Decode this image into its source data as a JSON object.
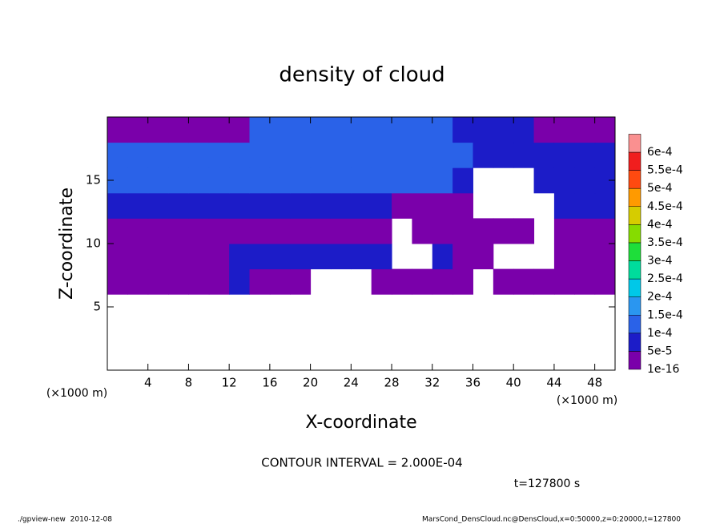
{
  "chart_data": {
    "type": "contour",
    "title": "density of cloud",
    "x_label": "X-coordinate",
    "y_label": "Z-coordinate",
    "x_unit_left": "(×1000 m)",
    "x_unit_right": "(×1000 m)",
    "contour_interval": "CONTOUR INTERVAL = 2.000E-04",
    "time_label": "t=127800 s",
    "footer_left": "./gpview-new  2010-12-08",
    "footer_right": "MarsCond_DensCloud.nc@DensCloud,x=0:50000,z=0:20000,t=127800",
    "xlim": [
      0,
      50
    ],
    "ylim": [
      0,
      20
    ],
    "xticks": [
      4,
      8,
      12,
      16,
      20,
      24,
      28,
      32,
      36,
      40,
      44,
      48
    ],
    "yticks": [
      5,
      10,
      15
    ],
    "x": [
      1,
      3,
      5,
      7,
      9,
      11,
      13,
      15,
      17,
      19,
      21,
      23,
      25,
      27,
      29,
      31,
      33,
      35,
      37,
      39,
      41,
      43,
      45,
      47,
      49
    ],
    "y": [
      1,
      3,
      5,
      7,
      9,
      11,
      13,
      15,
      17,
      19
    ],
    "z": [
      [
        null,
        null,
        null,
        null,
        null,
        null,
        null,
        null,
        null,
        null,
        null,
        null,
        null,
        null,
        null,
        null,
        null,
        null,
        null,
        null,
        null,
        null,
        null,
        null,
        null
      ],
      [
        null,
        null,
        null,
        null,
        null,
        null,
        null,
        null,
        null,
        null,
        null,
        null,
        null,
        null,
        null,
        null,
        null,
        null,
        null,
        null,
        null,
        null,
        null,
        null,
        null
      ],
      [
        null,
        null,
        null,
        null,
        null,
        null,
        null,
        null,
        null,
        null,
        null,
        null,
        null,
        null,
        null,
        null,
        null,
        null,
        null,
        null,
        null,
        null,
        null,
        null,
        null
      ],
      [
        1e-05,
        1e-05,
        1e-05,
        1e-05,
        1e-05,
        1e-05,
        7e-05,
        1e-05,
        1e-05,
        1e-05,
        null,
        null,
        null,
        1e-05,
        1e-05,
        1e-05,
        1e-05,
        1e-05,
        null,
        1e-05,
        1e-05,
        1e-05,
        1e-05,
        1e-05,
        1e-05
      ],
      [
        1e-05,
        1e-05,
        1e-05,
        1e-05,
        1e-05,
        1e-05,
        7e-05,
        7e-05,
        7e-05,
        7e-05,
        7e-05,
        7e-05,
        7e-05,
        7e-05,
        null,
        null,
        7e-05,
        1e-05,
        1e-05,
        null,
        null,
        null,
        1e-05,
        1e-05,
        1e-05
      ],
      [
        1e-05,
        1e-05,
        1e-05,
        1e-05,
        1e-05,
        1e-05,
        1e-05,
        1e-05,
        1e-05,
        1e-05,
        1e-05,
        1e-05,
        1e-05,
        1e-05,
        null,
        1e-05,
        1e-05,
        1e-05,
        1e-05,
        1e-05,
        1e-05,
        null,
        1e-05,
        1e-05,
        1e-05
      ],
      [
        7e-05,
        7e-05,
        7e-05,
        7e-05,
        7e-05,
        7e-05,
        7e-05,
        7e-05,
        7e-05,
        7e-05,
        7e-05,
        7e-05,
        7e-05,
        7e-05,
        1e-05,
        1e-05,
        1e-05,
        1e-05,
        null,
        null,
        null,
        null,
        7e-05,
        7e-05,
        7e-05
      ],
      [
        0.00012,
        0.00012,
        0.00012,
        0.00012,
        0.00012,
        0.00012,
        0.00012,
        0.00012,
        0.00012,
        0.00012,
        0.00012,
        0.00012,
        0.00012,
        0.00012,
        0.00012,
        0.00012,
        0.00012,
        7e-05,
        null,
        null,
        null,
        7e-05,
        7e-05,
        7e-05,
        7e-05
      ],
      [
        0.00012,
        0.00012,
        0.00012,
        0.00012,
        0.00012,
        0.00012,
        0.00012,
        0.00012,
        0.00012,
        0.00012,
        0.00012,
        0.00012,
        0.00012,
        0.00012,
        0.00012,
        0.00012,
        0.00012,
        0.00012,
        7e-05,
        7e-05,
        7e-05,
        7e-05,
        7e-05,
        7e-05,
        7e-05
      ],
      [
        1e-05,
        1e-05,
        1e-05,
        1e-05,
        1e-05,
        1e-05,
        1e-05,
        0.00012,
        0.00012,
        0.00012,
        0.00012,
        0.00012,
        0.00012,
        0.00012,
        0.00012,
        0.00012,
        0.00012,
        7e-05,
        7e-05,
        7e-05,
        7e-05,
        1e-05,
        1e-05,
        1e-05,
        1e-05
      ]
    ],
    "levels": [
      {
        "value": 1e-16,
        "label": "1e-16"
      },
      {
        "value": 5e-05,
        "label": "5e-5"
      },
      {
        "value": 0.0001,
        "label": "1e-4"
      },
      {
        "value": 0.00015,
        "label": "1.5e-4"
      },
      {
        "value": 0.0002,
        "label": "2e-4"
      },
      {
        "value": 0.00025,
        "label": "2.5e-4"
      },
      {
        "value": 0.0003,
        "label": "3e-4"
      },
      {
        "value": 0.00035,
        "label": "3.5e-4"
      },
      {
        "value": 0.0004,
        "label": "4e-4"
      },
      {
        "value": 0.00045,
        "label": "4.5e-4"
      },
      {
        "value": 0.0005,
        "label": "5e-4"
      },
      {
        "value": 0.00055,
        "label": "5.5e-4"
      },
      {
        "value": 0.0006,
        "label": "6e-4"
      }
    ],
    "colors": [
      "#7a00aa",
      "#1c1cc8",
      "#2a62e8",
      "#2a96f0",
      "#00c8e8",
      "#00dc9c",
      "#1ede3a",
      "#86dc00",
      "#d6cc00",
      "#ff9a00",
      "#ff4a10",
      "#f01e1e",
      "#fa9090"
    ]
  }
}
